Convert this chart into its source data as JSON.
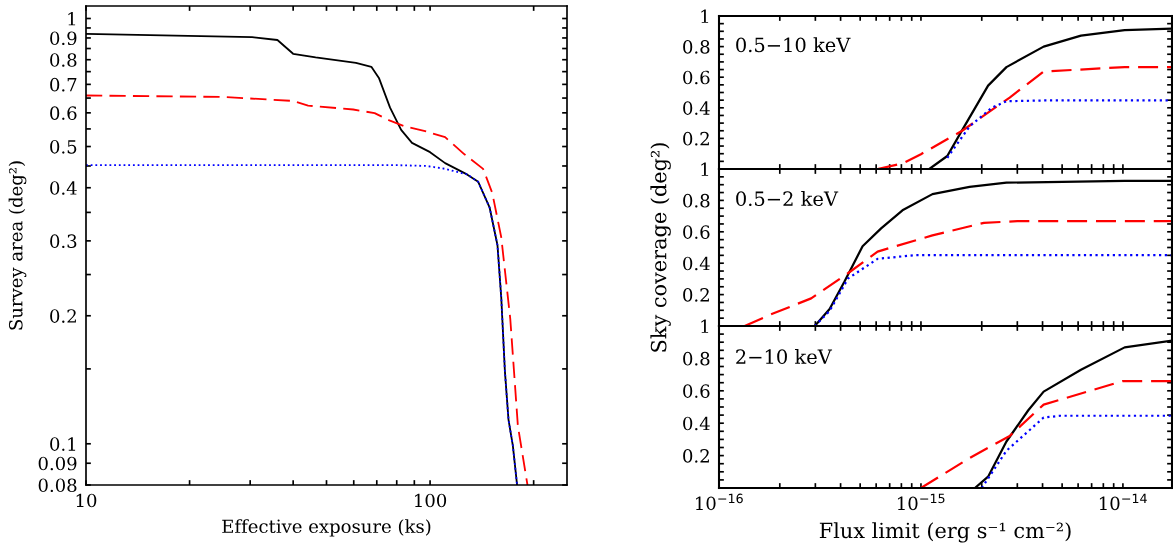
{
  "chart_data": [
    {
      "type": "line",
      "xlabel": "Effective exposure (ks)",
      "ylabel": "Survey area (deg²)",
      "log": "xy",
      "grid": false,
      "xlim": [
        10,
        250
      ],
      "ylim": [
        0.08,
        1.07
      ],
      "xticks": [
        10,
        {
          "value": 20,
          "label": null
        },
        {
          "value": 30,
          "label": null
        },
        {
          "value": 40,
          "label": null
        },
        {
          "value": 50,
          "label": null
        },
        {
          "value": 60,
          "label": null
        },
        {
          "value": 70,
          "label": null
        },
        {
          "value": 80,
          "label": null
        },
        {
          "value": 90,
          "label": null
        },
        100,
        {
          "value": 200,
          "label": null
        }
      ],
      "yticks": [
        0.08,
        0.09,
        0.1,
        {
          "value": 0.15,
          "label": null
        },
        0.2,
        {
          "value": 0.25,
          "label": null
        },
        0.3,
        {
          "value": 0.35,
          "label": null
        },
        0.4,
        {
          "value": 0.45,
          "label": null
        },
        0.5,
        {
          "value": 0.55,
          "label": null
        },
        0.6,
        {
          "value": 0.65,
          "label": null
        },
        0.7,
        {
          "value": 0.75,
          "label": null
        },
        0.8,
        {
          "value": 0.85,
          "label": null
        },
        0.9,
        {
          "value": 0.95,
          "label": null
        },
        1
      ],
      "series": [
        {
          "color": "#000000",
          "line_style": "solid",
          "x": [
            10,
            30.4,
            36,
            40,
            46.5,
            60.9,
            67.5,
            71,
            76.5,
            82.4,
            88.6,
            100,
            110.6,
            128,
            138,
            149,
            157,
            161,
            165,
            169,
            174,
            179
          ],
          "values": [
            0.92,
            0.904,
            0.89,
            0.826,
            0.81,
            0.786,
            0.77,
            0.725,
            0.617,
            0.547,
            0.51,
            0.485,
            0.457,
            0.43,
            0.413,
            0.359,
            0.293,
            0.221,
            0.148,
            0.114,
            0.099,
            0.08
          ]
        },
        {
          "color": "#ff0000",
          "line_style": "dashed",
          "x": [
            10,
            24.9,
            40,
            44.2,
            59.8,
            69,
            76.5,
            84.2,
            97.8,
            110.6,
            125.6,
            142.6,
            151.6,
            161,
            171,
            180,
            191.9
          ],
          "values": [
            0.659,
            0.654,
            0.64,
            0.624,
            0.611,
            0.599,
            0.575,
            0.558,
            0.542,
            0.526,
            0.48,
            0.443,
            0.389,
            0.306,
            0.197,
            0.11,
            0.08
          ]
        },
        {
          "color": "#0000ff",
          "line_style": "dotted",
          "x": [
            10,
            80,
            98,
            110.6,
            128,
            138,
            149,
            157,
            161,
            165,
            169,
            174,
            179
          ],
          "values": [
            0.452,
            0.452,
            0.45,
            0.443,
            0.43,
            0.413,
            0.359,
            0.293,
            0.221,
            0.148,
            0.114,
            0.099,
            0.08
          ]
        }
      ]
    },
    {
      "type": "line",
      "log": "x",
      "grid": false,
      "tick_labels": "y",
      "annotations": [
        "0.5−10 keV"
      ],
      "xlim": [
        1e-16,
        1.75e-14
      ],
      "ylim": [
        0,
        1
      ],
      "xticks": [
        {
          "value": 1e-16,
          "label": null
        },
        {
          "value": 2e-16,
          "label": null
        },
        {
          "value": 3e-16,
          "label": null
        },
        {
          "value": 4e-16,
          "label": null
        },
        {
          "value": 5e-16,
          "label": null
        },
        {
          "value": 6e-16,
          "label": null
        },
        {
          "value": 7e-16,
          "label": null
        },
        {
          "value": 8e-16,
          "label": null
        },
        {
          "value": 9e-16,
          "label": null
        },
        {
          "value": 1e-15,
          "label": null
        },
        {
          "value": 2e-15,
          "label": null
        },
        {
          "value": 3e-15,
          "label": null
        },
        {
          "value": 4e-15,
          "label": null
        },
        {
          "value": 5e-15,
          "label": null
        },
        {
          "value": 6e-15,
          "label": null
        },
        {
          "value": 7e-15,
          "label": null
        },
        {
          "value": 8e-15,
          "label": null
        },
        {
          "value": 9e-15,
          "label": null
        },
        {
          "value": 1e-14,
          "label": null
        }
      ],
      "yticks": [
        {
          "value": 0,
          "label": null
        },
        {
          "value": 0.05,
          "label": null
        },
        {
          "value": 0.1,
          "label": null
        },
        {
          "value": 0.15,
          "label": null
        },
        0.2,
        {
          "value": 0.25,
          "label": null
        },
        {
          "value": 0.3,
          "label": null
        },
        {
          "value": 0.35,
          "label": null
        },
        0.4,
        {
          "value": 0.45,
          "label": null
        },
        {
          "value": 0.5,
          "label": null
        },
        {
          "value": 0.55,
          "label": null
        },
        0.6,
        {
          "value": 0.65,
          "label": null
        },
        {
          "value": 0.7,
          "label": null
        },
        {
          "value": 0.75,
          "label": null
        },
        0.8,
        {
          "value": 0.85,
          "label": null
        },
        {
          "value": 0.9,
          "label": null
        },
        {
          "value": 0.95,
          "label": null
        },
        1
      ],
      "series": [
        {
          "color": "#000000",
          "line_style": "solid",
          "x": [
            1.1e-15,
            1.35e-15,
            1.6e-15,
            2.15e-15,
            2.65e-15,
            4.05e-15,
            6.2e-15,
            1.02e-14,
            1.75e-14
          ],
          "values": [
            0,
            0.085,
            0.254,
            0.545,
            0.666,
            0.8,
            0.872,
            0.908,
            0.918
          ]
        },
        {
          "color": "#ff0000",
          "line_style": "dashed",
          "x": [
            6.1e-16,
            8.1e-16,
            1e-15,
            1.6e-15,
            2.75e-15,
            4.05e-15,
            1.02e-14,
            1.75e-14
          ],
          "values": [
            0,
            0.036,
            0.097,
            0.25,
            0.467,
            0.637,
            0.666,
            0.666
          ]
        },
        {
          "color": "#0000ff",
          "line_style": "dotted",
          "x": [
            1.35e-15,
            1.74e-15,
            2.24e-15,
            2.65e-15,
            4.05e-15,
            1.75e-14
          ],
          "values": [
            0.073,
            0.278,
            0.4,
            0.443,
            0.448,
            0.448
          ]
        }
      ]
    },
    {
      "type": "line",
      "log": "x",
      "grid": false,
      "tick_labels": "y",
      "ylabel": "Sky coverage (deg²)",
      "annotations": [
        "0.5−2 keV"
      ],
      "xlim": [
        1e-16,
        1.75e-14
      ],
      "ylim": [
        0,
        1
      ],
      "xticks": [
        {
          "value": 1e-16,
          "label": null
        },
        {
          "value": 2e-16,
          "label": null
        },
        {
          "value": 3e-16,
          "label": null
        },
        {
          "value": 4e-16,
          "label": null
        },
        {
          "value": 5e-16,
          "label": null
        },
        {
          "value": 6e-16,
          "label": null
        },
        {
          "value": 7e-16,
          "label": null
        },
        {
          "value": 8e-16,
          "label": null
        },
        {
          "value": 9e-16,
          "label": null
        },
        {
          "value": 1e-15,
          "label": null
        },
        {
          "value": 2e-15,
          "label": null
        },
        {
          "value": 3e-15,
          "label": null
        },
        {
          "value": 4e-15,
          "label": null
        },
        {
          "value": 5e-15,
          "label": null
        },
        {
          "value": 6e-15,
          "label": null
        },
        {
          "value": 7e-15,
          "label": null
        },
        {
          "value": 8e-15,
          "label": null
        },
        {
          "value": 9e-15,
          "label": null
        },
        {
          "value": 1e-14,
          "label": null
        }
      ],
      "yticks": [
        {
          "value": 0,
          "label": null
        },
        {
          "value": 0.05,
          "label": null
        },
        {
          "value": 0.1,
          "label": null
        },
        {
          "value": 0.15,
          "label": null
        },
        0.2,
        {
          "value": 0.25,
          "label": null
        },
        {
          "value": 0.3,
          "label": null
        },
        {
          "value": 0.35,
          "label": null
        },
        0.4,
        {
          "value": 0.45,
          "label": null
        },
        {
          "value": 0.5,
          "label": null
        },
        {
          "value": 0.55,
          "label": null
        },
        0.6,
        {
          "value": 0.65,
          "label": null
        },
        {
          "value": 0.7,
          "label": null
        },
        {
          "value": 0.75,
          "label": null
        },
        0.8,
        {
          "value": 0.85,
          "label": null
        },
        {
          "value": 0.9,
          "label": null
        },
        {
          "value": 0.95,
          "label": null
        },
        1
      ],
      "series": [
        {
          "color": "#000000",
          "line_style": "solid",
          "x": [
            2.98e-16,
            3.53e-16,
            4.17e-16,
            5.14e-16,
            6.35e-16,
            8.1e-16,
            1.14e-15,
            1.74e-15,
            2.65e-15,
            1.02e-14,
            1.75e-14
          ],
          "values": [
            0,
            0.108,
            0.28,
            0.508,
            0.622,
            0.737,
            0.84,
            0.886,
            0.913,
            0.924,
            0.925
          ]
        },
        {
          "color": "#ff0000",
          "line_style": "dashed",
          "x": [
            1.34e-16,
            1.8e-16,
            2.86e-16,
            4.35e-16,
            6.1e-16,
            1.14e-15,
            2.05e-15,
            3e-15,
            1.75e-14
          ],
          "values": [
            0,
            0.073,
            0.176,
            0.336,
            0.474,
            0.577,
            0.657,
            0.668,
            0.668
          ]
        },
        {
          "color": "#0000ff",
          "line_style": "dotted",
          "x": [
            2.98e-16,
            3.53e-16,
            4.35e-16,
            6.1e-16,
            9.3e-16,
            1.75e-14
          ],
          "values": [
            0,
            0.096,
            0.302,
            0.428,
            0.451,
            0.451
          ]
        }
      ]
    },
    {
      "type": "line",
      "log": "x",
      "grid": false,
      "xlabel": "Flux limit (erg s⁻¹ cm⁻²)",
      "annotations": [
        "2−10 keV"
      ],
      "xlim": [
        1e-16,
        1.75e-14
      ],
      "ylim": [
        0,
        1
      ],
      "xticks": [
        {
          "value": 1e-16,
          "label": "10$^{−16}$"
        },
        {
          "value": 2e-16,
          "label": null
        },
        {
          "value": 3e-16,
          "label": null
        },
        {
          "value": 4e-16,
          "label": null
        },
        {
          "value": 5e-16,
          "label": null
        },
        {
          "value": 6e-16,
          "label": null
        },
        {
          "value": 7e-16,
          "label": null
        },
        {
          "value": 8e-16,
          "label": null
        },
        {
          "value": 9e-16,
          "label": null
        },
        {
          "value": 1e-15,
          "label": "10$^{−15}$"
        },
        {
          "value": 2e-15,
          "label": null
        },
        {
          "value": 3e-15,
          "label": null
        },
        {
          "value": 4e-15,
          "label": null
        },
        {
          "value": 5e-15,
          "label": null
        },
        {
          "value": 6e-15,
          "label": null
        },
        {
          "value": 7e-15,
          "label": null
        },
        {
          "value": 8e-15,
          "label": null
        },
        {
          "value": 9e-15,
          "label": null
        },
        {
          "value": 1e-14,
          "label": "10$^{−14}$"
        }
      ],
      "yticks": [
        {
          "value": 0,
          "label": null
        },
        {
          "value": 0.05,
          "label": null
        },
        {
          "value": 0.1,
          "label": null
        },
        {
          "value": 0.15,
          "label": null
        },
        0.2,
        {
          "value": 0.25,
          "label": null
        },
        {
          "value": 0.3,
          "label": null
        },
        {
          "value": 0.35,
          "label": null
        },
        0.4,
        {
          "value": 0.45,
          "label": null
        },
        {
          "value": 0.5,
          "label": null
        },
        {
          "value": 0.55,
          "label": null
        },
        0.6,
        {
          "value": 0.65,
          "label": null
        },
        {
          "value": 0.7,
          "label": null
        },
        {
          "value": 0.75,
          "label": null
        },
        0.8,
        {
          "value": 0.85,
          "label": null
        },
        {
          "value": 0.9,
          "label": null
        },
        {
          "value": 0.95,
          "label": null
        },
        1
      ],
      "series": [
        {
          "color": "#000000",
          "line_style": "solid",
          "x": [
            1.85e-15,
            2.15e-15,
            2.65e-15,
            3.4e-15,
            4.05e-15,
            6.2e-15,
            1.02e-14,
            1.75e-14
          ],
          "values": [
            0,
            0.07,
            0.287,
            0.48,
            0.595,
            0.73,
            0.868,
            0.909
          ]
        },
        {
          "color": "#ff0000",
          "line_style": "dashed",
          "x": [
            1e-15,
            1.74e-15,
            2.75e-15,
            4.05e-15,
            1e-14,
            1.75e-14
          ],
          "values": [
            0,
            0.185,
            0.321,
            0.515,
            0.66,
            0.66
          ]
        },
        {
          "color": "#0000ff",
          "line_style": "dotted",
          "x": [
            2e-15,
            2.65e-15,
            4.05e-15,
            4.9e-15,
            1.75e-14
          ],
          "values": [
            0,
            0.23,
            0.435,
            0.446,
            0.446
          ]
        }
      ]
    }
  ]
}
